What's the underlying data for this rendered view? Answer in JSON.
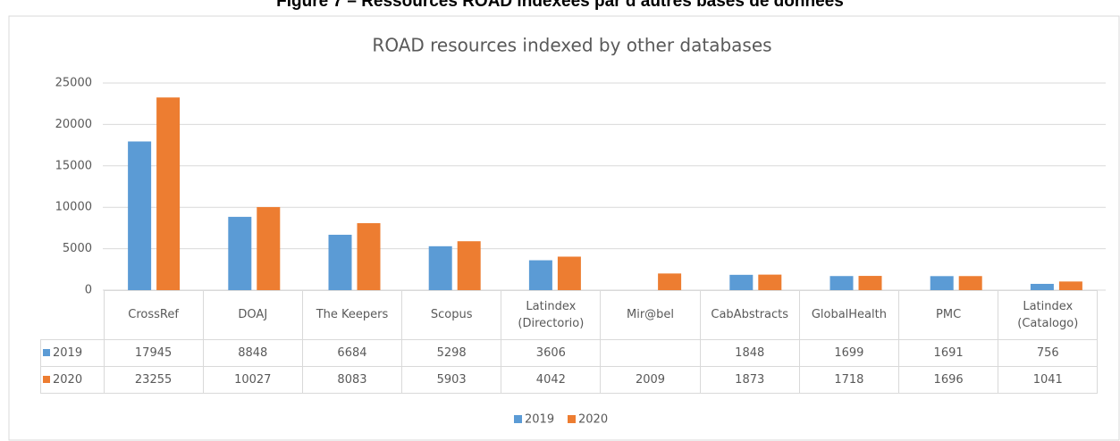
{
  "page_title": "Figure 7 – Ressources ROAD indexées par d’autres bases de données",
  "chart_data": {
    "type": "bar",
    "title": "ROAD resources indexed by other databases",
    "categories": [
      "CrossRef",
      "DOAJ",
      "The Keepers",
      "Scopus",
      "Latindex (Directorio)",
      "Mir@bel",
      "CabAbstracts",
      "GlobalHealth",
      "PMC",
      "Latindex (Catalogo)"
    ],
    "series": [
      {
        "name": "2019",
        "color": "#5b9bd5",
        "values": [
          17945,
          8848,
          6684,
          5298,
          3606,
          null,
          1848,
          1699,
          1691,
          756
        ]
      },
      {
        "name": "2020",
        "color": "#ed7d31",
        "values": [
          23255,
          10027,
          8083,
          5903,
          4042,
          2009,
          1873,
          1718,
          1696,
          1041
        ]
      }
    ],
    "ylim": [
      0,
      25000
    ],
    "yticks": [
      0,
      5000,
      10000,
      15000,
      20000,
      25000
    ],
    "grid": true,
    "legend": "bottom"
  }
}
